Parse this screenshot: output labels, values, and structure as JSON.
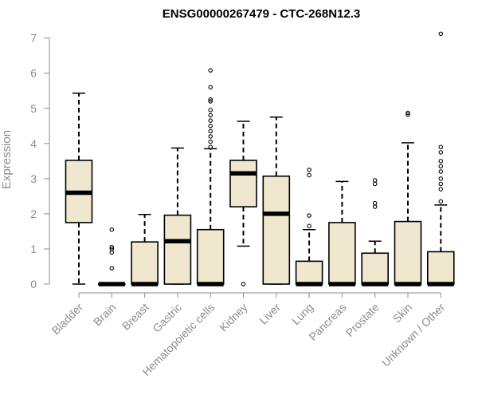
{
  "chart_data": {
    "type": "boxplot",
    "title": "ENSG00000267479 - CTC-268N12.3",
    "ylabel": "Expression",
    "xlabel": "",
    "ylim": [
      0,
      7
    ],
    "yticks": [
      "0",
      "1",
      "2",
      "3",
      "4",
      "5",
      "6",
      "7"
    ],
    "grid": false,
    "colors": {
      "box_fill": "#efe8cf",
      "box_stroke": "#000000",
      "axis": "#8c8c8c"
    },
    "categories": [
      "Bladder",
      "Brain",
      "Breast",
      "Gastric",
      "Hematopoietic cells",
      "Kidney",
      "Liver",
      "Lung",
      "Pancreas",
      "Prostate",
      "Skin",
      "Unknown / Other"
    ],
    "boxes": [
      {
        "whisker_low": 0,
        "q1": 1.75,
        "median": 2.6,
        "q3": 3.52,
        "whisker_high": 5.43,
        "outliers": []
      },
      {
        "whisker_low": 0,
        "q1": 0,
        "median": 0,
        "q3": 0,
        "whisker_high": 0,
        "outliers": [
          0.45,
          0.9,
          1.0,
          1.05,
          1.55
        ]
      },
      {
        "whisker_low": 0,
        "q1": 0,
        "median": 0,
        "q3": 1.2,
        "whisker_high": 1.98,
        "outliers": []
      },
      {
        "whisker_low": 0,
        "q1": 0,
        "median": 1.22,
        "q3": 1.96,
        "whisker_high": 3.87,
        "outliers": []
      },
      {
        "whisker_low": 0,
        "q1": 0,
        "median": 0,
        "q3": 1.55,
        "whisker_high": 3.85,
        "outliers": [
          3.9,
          4.05,
          4.2,
          4.35,
          4.5,
          4.65,
          4.8,
          4.95,
          5.2,
          5.25,
          5.6,
          6.08
        ]
      },
      {
        "whisker_low": 1.08,
        "q1": 2.2,
        "median": 3.15,
        "q3": 3.52,
        "whisker_high": 4.63,
        "outliers": [
          0
        ]
      },
      {
        "whisker_low": 0,
        "q1": 0,
        "median": 2.0,
        "q3": 3.07,
        "whisker_high": 4.75,
        "outliers": []
      },
      {
        "whisker_low": 0,
        "q1": 0,
        "median": 0,
        "q3": 0.65,
        "whisker_high": 1.55,
        "outliers": [
          1.65,
          1.95,
          3.1,
          3.25
        ]
      },
      {
        "whisker_low": 0,
        "q1": 0,
        "median": 0,
        "q3": 1.75,
        "whisker_high": 2.92,
        "outliers": []
      },
      {
        "whisker_low": 0,
        "q1": 0,
        "median": 0,
        "q3": 0.88,
        "whisker_high": 1.22,
        "outliers": [
          2.2,
          2.3,
          2.85,
          2.95
        ]
      },
      {
        "whisker_low": 0,
        "q1": 0,
        "median": 0,
        "q3": 1.78,
        "whisker_high": 4.02,
        "outliers": [
          4.82,
          4.87
        ]
      },
      {
        "whisker_low": 0,
        "q1": 0,
        "median": 0,
        "q3": 0.92,
        "whisker_high": 2.25,
        "outliers": [
          2.35,
          2.7,
          2.85,
          3.0,
          3.2,
          3.35,
          3.5,
          3.75,
          3.9,
          7.12
        ]
      }
    ]
  }
}
